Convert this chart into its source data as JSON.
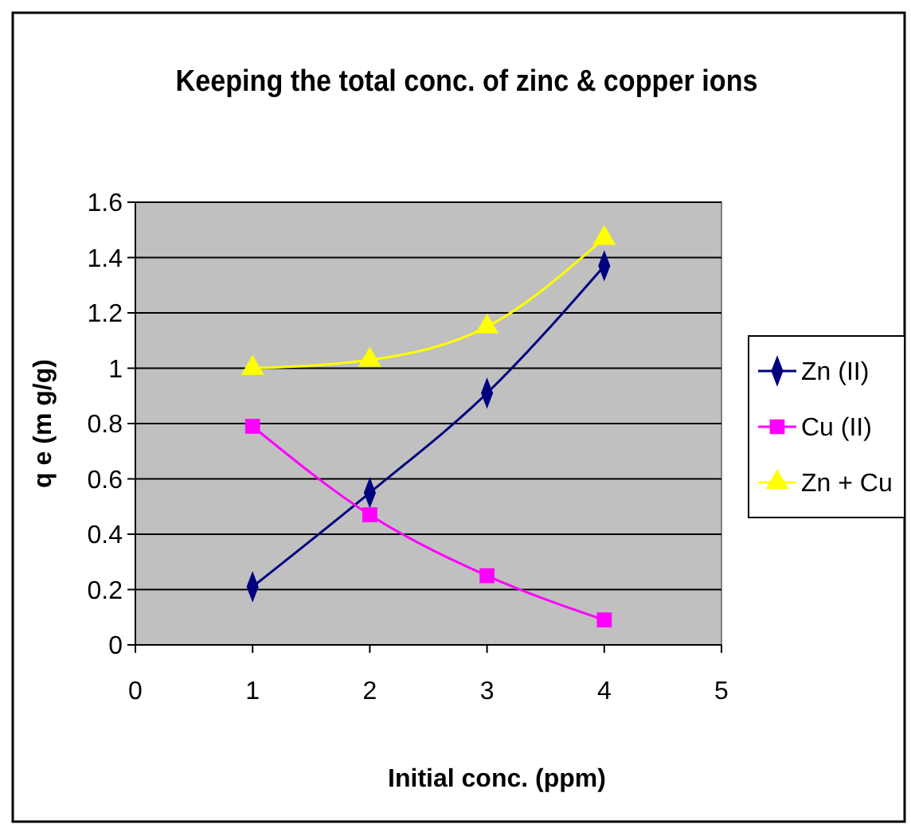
{
  "chart_data": {
    "type": "line",
    "title": "Keeping the total conc. of zinc & copper ions",
    "xlabel": "Initial conc. (ppm)",
    "ylabel": "q e (m g/g)",
    "x": [
      1,
      2,
      3,
      4
    ],
    "xlim": [
      0,
      5
    ],
    "xticks": [
      0,
      1,
      2,
      3,
      4,
      5
    ],
    "ylim": [
      0,
      1.6
    ],
    "yticks": [
      0,
      0.2,
      0.4,
      0.6,
      0.8,
      1,
      1.2,
      1.4,
      1.6
    ],
    "grid": "y",
    "legend": "right",
    "series": [
      {
        "name": "Zn (II)",
        "color": "#000080",
        "marker": "diamond",
        "values": [
          0.21,
          0.55,
          0.91,
          1.37
        ]
      },
      {
        "name": "Cu (II)",
        "color": "#ff00ff",
        "marker": "square",
        "values": [
          0.79,
          0.47,
          0.25,
          0.09
        ]
      },
      {
        "name": "Zn + Cu",
        "color": "#ffff00",
        "marker": "triangle",
        "values": [
          1.0,
          1.03,
          1.15,
          1.47
        ]
      }
    ]
  }
}
